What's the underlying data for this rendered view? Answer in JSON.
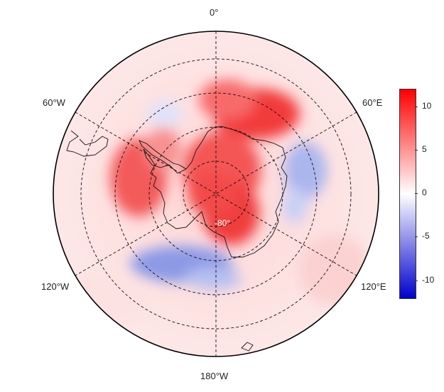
{
  "map": {
    "projection": "south-polar-stereographic",
    "longitude_labels": [
      {
        "id": "lon-0",
        "text": "0°"
      },
      {
        "id": "lon-60w",
        "text": "60°W"
      },
      {
        "id": "lon-60e",
        "text": "60°E"
      },
      {
        "id": "lon-120w",
        "text": "120°W"
      },
      {
        "id": "lon-120e",
        "text": "120°E"
      },
      {
        "id": "lon-180w",
        "text": "180°W"
      }
    ],
    "latitude_label": "-80°",
    "colors": {
      "positive_max": "#ff0000",
      "neutral": "#ffffff",
      "negative_max": "#0000cc",
      "grid": "#111111"
    }
  },
  "colorbar": {
    "min": -12,
    "max": 12,
    "ticks": [
      "10",
      "5",
      "0",
      "-5",
      "-10"
    ],
    "tick_values": [
      10,
      5,
      0,
      -5,
      -10
    ]
  }
}
